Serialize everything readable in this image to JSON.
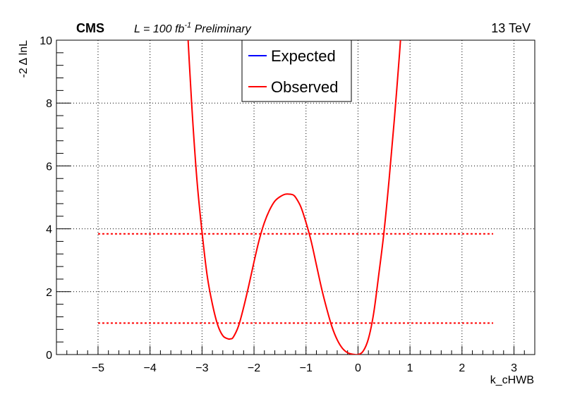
{
  "header": {
    "experiment": "CMS",
    "lumi_prefix": "L = 100 fb",
    "lumi_exp": "-1",
    "status": "Preliminary",
    "energy": "13 TeV"
  },
  "chart_data": {
    "type": "line",
    "title": "",
    "xlabel": "k_cHWB",
    "ylabel": "-2 Δ lnL",
    "xlim": [
      -5.8,
      3.4
    ],
    "ylim": [
      0,
      10
    ],
    "grid": true,
    "x_ticks": [
      -5,
      -4,
      -3,
      -2,
      -1,
      0,
      1,
      2,
      3
    ],
    "x_tick_labels": [
      "−5",
      "−4",
      "−3",
      "−2",
      "−1",
      "0",
      "1",
      "2",
      "3"
    ],
    "y_ticks": [
      0,
      2,
      4,
      6,
      8,
      10
    ],
    "y_tick_labels": [
      "0",
      "2",
      "4",
      "6",
      "8",
      "10"
    ],
    "legend": {
      "placement": "top-center",
      "entries": [
        {
          "label": "Expected",
          "color": "#0000ff"
        },
        {
          "label": "Observed",
          "color": "#ff0000"
        }
      ]
    },
    "series": [
      {
        "name": "Observed",
        "color": "#ff0000",
        "x": [
          -3.3,
          -3.2,
          -3.1,
          -3.0,
          -2.9,
          -2.8,
          -2.7,
          -2.6,
          -2.5,
          -2.45,
          -2.4,
          -2.3,
          -2.2,
          -2.1,
          -2.0,
          -1.9,
          -1.8,
          -1.7,
          -1.6,
          -1.5,
          -1.4,
          -1.3,
          -1.25,
          -1.2,
          -1.1,
          -1.0,
          -0.9,
          -0.8,
          -0.7,
          -0.6,
          -0.5,
          -0.4,
          -0.3,
          -0.2,
          -0.1,
          0.0,
          0.1,
          0.2,
          0.3,
          0.4,
          0.5,
          0.6,
          0.7,
          0.8,
          0.86
        ],
        "values": [
          11.0,
          8.0,
          5.6,
          3.9,
          2.5,
          1.6,
          0.95,
          0.6,
          0.5,
          0.5,
          0.55,
          0.9,
          1.5,
          2.2,
          2.95,
          3.65,
          4.2,
          4.6,
          4.88,
          5.02,
          5.1,
          5.1,
          5.08,
          5.0,
          4.7,
          4.2,
          3.6,
          2.85,
          2.1,
          1.45,
          0.88,
          0.47,
          0.2,
          0.06,
          0.01,
          0.0,
          0.11,
          0.5,
          1.3,
          2.55,
          3.9,
          5.6,
          7.5,
          9.6,
          11.0
        ]
      }
    ],
    "reference_lines": [
      {
        "y": 1.0,
        "x_from": -5.0,
        "x_to": 2.6,
        "color": "#ff0000",
        "style": "dotted"
      },
      {
        "y": 3.84,
        "x_from": -5.0,
        "x_to": 2.6,
        "color": "#ff0000",
        "style": "dotted"
      }
    ]
  }
}
